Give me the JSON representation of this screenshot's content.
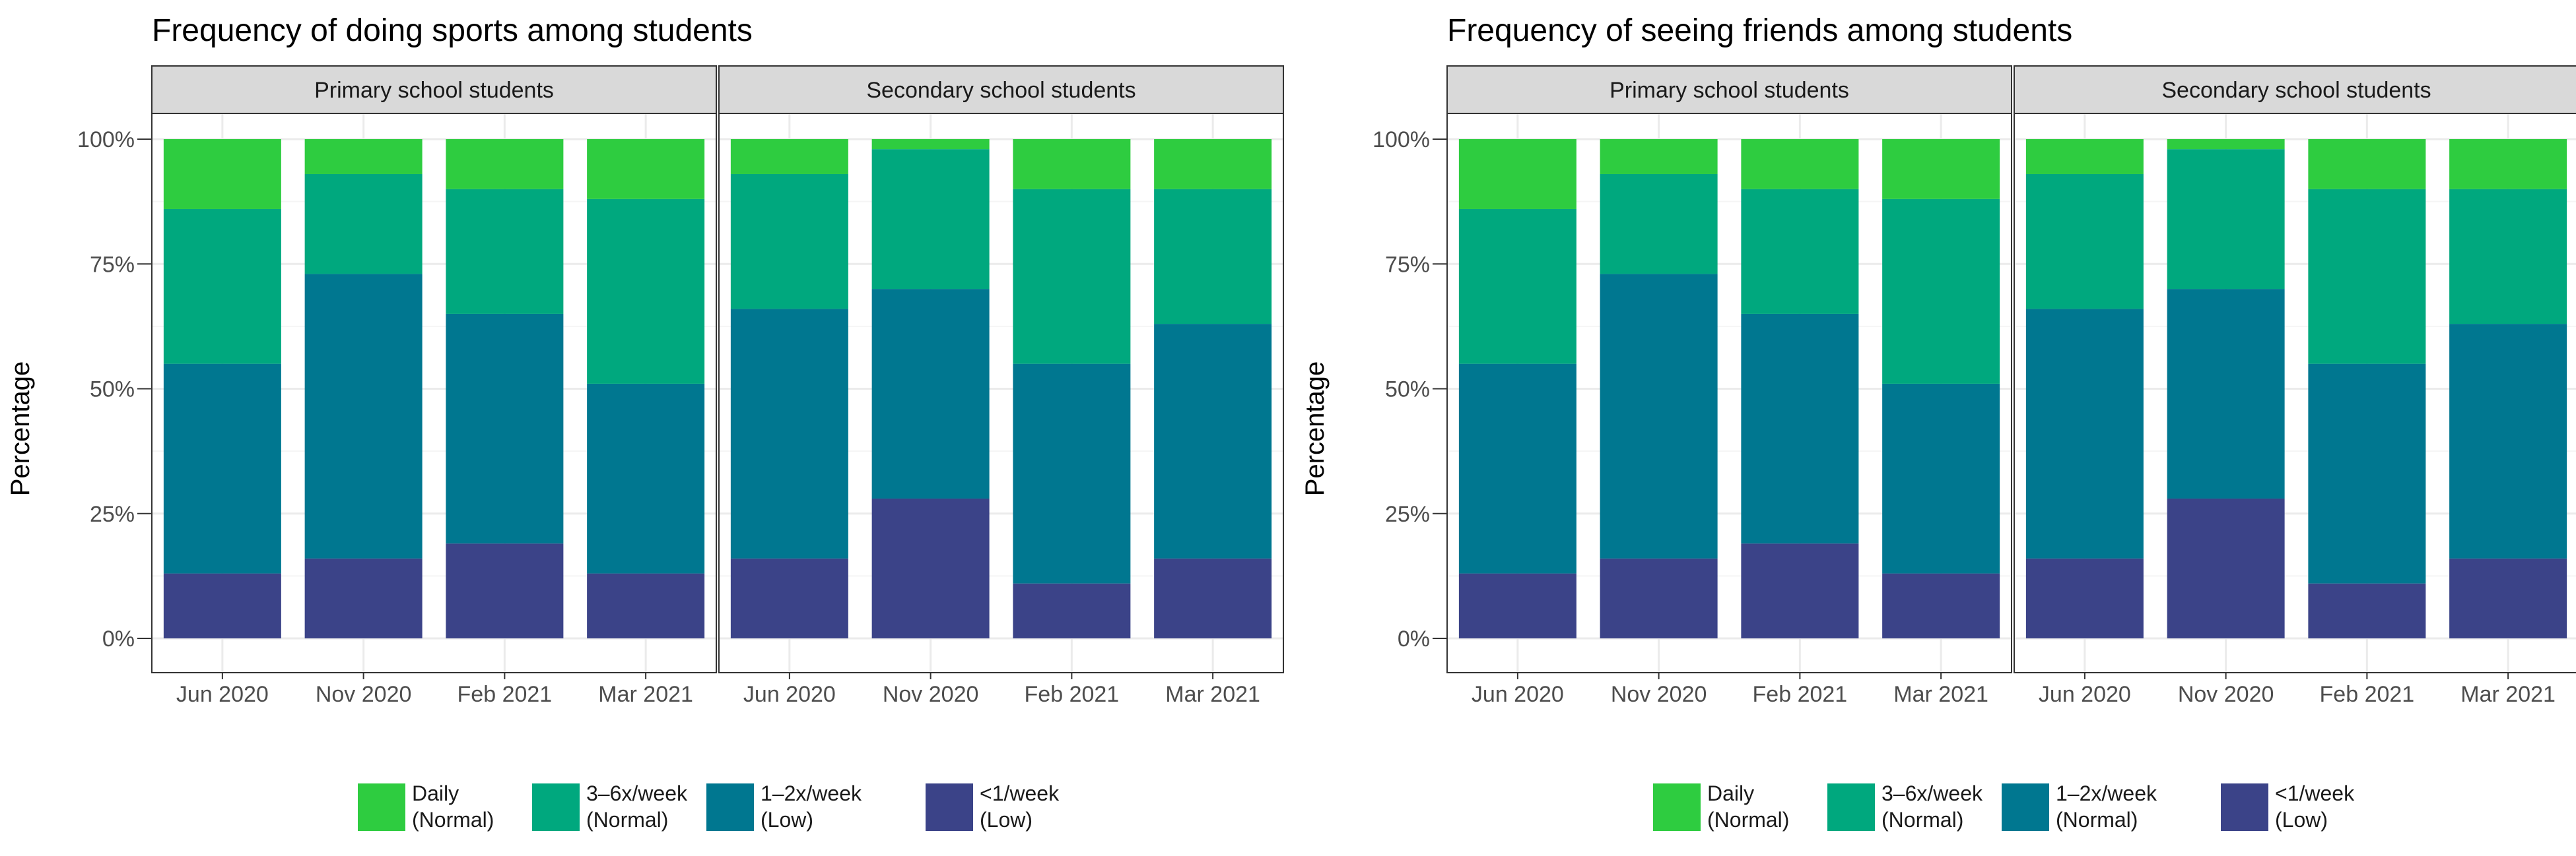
{
  "chart_data": [
    {
      "type": "bar",
      "stacked": true,
      "title": "Frequency of doing sports among students",
      "ylabel": "Percentage",
      "xlabel": "",
      "ylim": [
        0,
        100
      ],
      "yticks": [
        "0%",
        "25%",
        "50%",
        "75%",
        "100%"
      ],
      "categories": [
        "Jun 2020",
        "Nov 2020",
        "Feb 2021",
        "Mar 2021"
      ],
      "legend": [
        {
          "line1": "Daily",
          "line2": "(Normal)"
        },
        {
          "line1": "3–6x/week",
          "line2": "(Normal)"
        },
        {
          "line1": "1–2x/week",
          "line2": "(Low)"
        },
        {
          "line1": "<1/week",
          "line2": "(Low)"
        }
      ],
      "panels": [
        {
          "label": "Primary school students",
          "series": [
            {
              "name": "Daily (Normal)",
              "values": [
                14,
                7,
                10,
                12
              ]
            },
            {
              "name": "3–6x/week (Normal)",
              "values": [
                31,
                20,
                25,
                37
              ]
            },
            {
              "name": "1–2x/week (Low)",
              "values": [
                42,
                57,
                46,
                38
              ]
            },
            {
              "name": "<1/week (Low)",
              "values": [
                13,
                16,
                19,
                13
              ]
            }
          ]
        },
        {
          "label": "Secondary school students",
          "series": [
            {
              "name": "Daily (Normal)",
              "values": [
                7,
                2,
                10,
                10
              ]
            },
            {
              "name": "3–6x/week (Normal)",
              "values": [
                27,
                28,
                35,
                27
              ]
            },
            {
              "name": "1–2x/week (Low)",
              "values": [
                50,
                42,
                44,
                47
              ]
            },
            {
              "name": "<1/week (Low)",
              "values": [
                16,
                28,
                11,
                16
              ]
            }
          ]
        }
      ]
    },
    {
      "type": "bar",
      "stacked": true,
      "title": "Frequency of seeing friends among students",
      "ylabel": "Percentage",
      "xlabel": "",
      "ylim": [
        0,
        100
      ],
      "yticks": [
        "0%",
        "25%",
        "50%",
        "75%",
        "100%"
      ],
      "categories": [
        "Jun 2020",
        "Nov 2020",
        "Feb 2021",
        "Mar 2021"
      ],
      "legend": [
        {
          "line1": "Daily",
          "line2": "(Normal)"
        },
        {
          "line1": "3–6x/week",
          "line2": "(Normal)"
        },
        {
          "line1": "1–2x/week",
          "line2": "(Normal)"
        },
        {
          "line1": "<1/week",
          "line2": "(Low)"
        }
      ],
      "panels": [
        {
          "label": "Primary school students",
          "series": [
            {
              "name": "Daily (Normal)",
              "values": [
                14,
                7,
                10,
                12
              ]
            },
            {
              "name": "3–6x/week (Normal)",
              "values": [
                31,
                20,
                25,
                37
              ]
            },
            {
              "name": "1–2x/week (Normal)",
              "values": [
                42,
                57,
                46,
                38
              ]
            },
            {
              "name": "<1/week (Low)",
              "values": [
                13,
                16,
                19,
                13
              ]
            }
          ]
        },
        {
          "label": "Secondary school students",
          "series": [
            {
              "name": "Daily (Normal)",
              "values": [
                7,
                2,
                10,
                10
              ]
            },
            {
              "name": "3–6x/week (Normal)",
              "values": [
                27,
                28,
                35,
                27
              ]
            },
            {
              "name": "1–2x/week (Normal)",
              "values": [
                50,
                42,
                44,
                47
              ]
            },
            {
              "name": "<1/week (Low)",
              "values": [
                16,
                28,
                11,
                16
              ]
            }
          ]
        }
      ]
    }
  ],
  "colors": {
    "series": [
      "#2ecc40",
      "#00a87e",
      "#007790",
      "#3b4388"
    ],
    "strip_fill": "#d9d9d9",
    "strip_border": "#333333",
    "panel_border": "#333333",
    "grid_major": "#ebebeb",
    "grid_minor": "#f5f5f5",
    "tick_text": "#4d4d4d"
  }
}
